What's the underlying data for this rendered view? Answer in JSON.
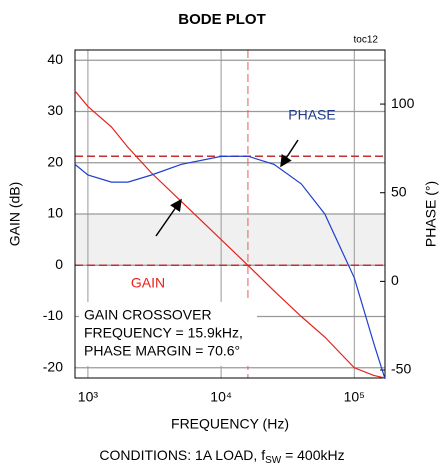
{
  "chart_data": {
    "type": "line",
    "title": "BODE PLOT",
    "subtitle": "toc12",
    "x_label": "FREQUENCY (Hz)",
    "y_label": "GAIN (dB)",
    "y2_label": "PHASE (°)",
    "log_x": true,
    "xlim": [
      800,
      170000
    ],
    "xticks": [
      {
        "value": 1000,
        "label": "10³"
      },
      {
        "value": 10000,
        "label": "10⁴"
      },
      {
        "value": 100000,
        "label": "10⁵"
      }
    ],
    "ylim": [
      -22,
      42
    ],
    "yticks": [
      -20,
      -10,
      0,
      10,
      20,
      30,
      40
    ],
    "y2lim": [
      -54.5,
      130.5
    ],
    "y2ticks": [
      -50,
      0,
      50,
      100
    ],
    "grid": true,
    "x": [
      800,
      1000,
      1500,
      2000,
      3000,
      5000,
      10000,
      15900,
      25000,
      40000,
      60000,
      100000,
      140000,
      170000
    ],
    "series": [
      {
        "name": "GAIN",
        "color": "#e8211c",
        "values": [
          34,
          31,
          27,
          23,
          18,
          12.5,
          5,
          0,
          -5,
          -10,
          -14,
          -20,
          -21.5,
          -22
        ]
      },
      {
        "name": "PHASE",
        "color": "#1f3fd0",
        "axis": "y2",
        "values": [
          66,
          60,
          56,
          56,
          60,
          66,
          70.5,
          70.6,
          66,
          55,
          38,
          2,
          -35,
          -55
        ]
      }
    ],
    "crossover_frequency": 15900,
    "phase_margin": 70.6,
    "annotation": [
      "GAIN CROSSOVER",
      "FREQUENCY = 15.9kHz,",
      "PHASE MARGIN = 70.6°"
    ],
    "conditions": [
      "CONDITIONS: 1A LOAD, f",
      "SW",
      " = 400kHz"
    ]
  }
}
